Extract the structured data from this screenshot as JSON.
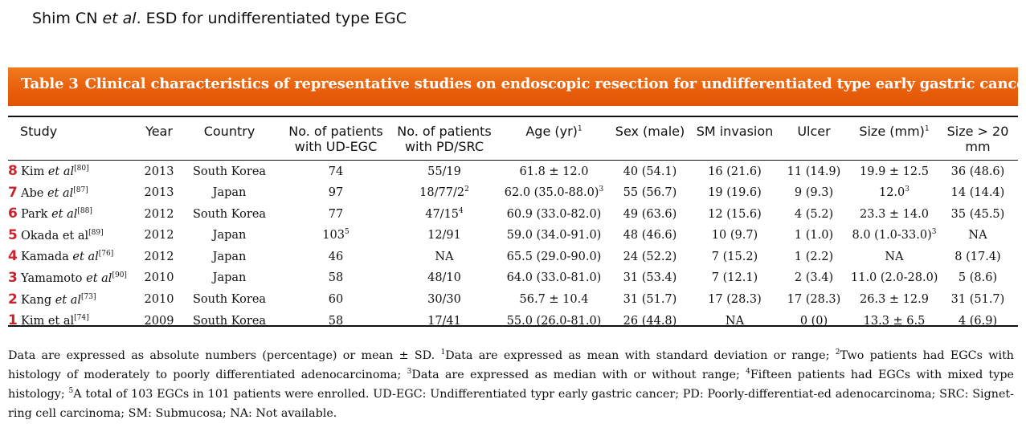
{
  "running_head": {
    "prefix": "Shim CN ",
    "etal": "et al",
    "suffix": ". ESD for undifferentiated type EGC"
  },
  "table": {
    "label": "Table 3",
    "title": "Clinical characteristics of representative studies on endoscopic resection for undifferentiated type early gastric cancer",
    "headers": {
      "study": "Study",
      "year": "Year",
      "country": "Country",
      "ud_line1": "No. of patients",
      "ud_line2": "with UD-EGC",
      "pd_line1": "No. of patients",
      "pd_line2": "with PD/SRC",
      "age": "Age (yr)",
      "age_sup": "1",
      "sex": "Sex (male)",
      "sm": "SM invasion",
      "ulcer": "Ulcer",
      "size": "Size (mm)",
      "size_sup": "1",
      "size20": "Size > 20 mm"
    },
    "rows": [
      {
        "num": "8",
        "author": "Kim ",
        "etal": "et al",
        "ref": "[80]",
        "year": "2013",
        "country": "South Korea",
        "ud": "74",
        "pd": "55/19",
        "age": "61.8 ± 12.0",
        "sex": "40 (54.1)",
        "sm": "16 (21.6)",
        "ulcer": "11 (14.9)",
        "size": "19.9 ± 12.5",
        "size20": "36 (48.6)"
      },
      {
        "num": "7",
        "author": "Abe ",
        "etal": "et al",
        "ref": "[87]",
        "year": "2013",
        "country": "Japan",
        "ud": "97",
        "pd": "18/77/2",
        "pd_sup": "2",
        "age": "62.0 (35.0-88.0)",
        "age_sup": "3",
        "sex": "55 (56.7)",
        "sm": "19 (19.6)",
        "ulcer": "9 (9.3)",
        "size": "12.0",
        "size_sup": "3",
        "size20": "14 (14.4)"
      },
      {
        "num": "6",
        "author": "Park ",
        "etal": "et al",
        "ref": "[88]",
        "year": "2012",
        "country": "South Korea",
        "ud": "77",
        "pd": "47/15",
        "pd_sup": "4",
        "age": "60.9 (33.0-82.0)",
        "sex": "49 (63.6)",
        "sm": "12 (15.6)",
        "ulcer": "4 (5.2)",
        "size": "23.3 ± 14.0",
        "size20": "35 (45.5)"
      },
      {
        "num": "5",
        "author": "Okada et al",
        "etal": "",
        "ref": "[89]",
        "year": "2012",
        "country": "Japan",
        "ud": "103",
        "ud_sup": "5",
        "pd": "12/91",
        "age": "59.0 (34.0-91.0)",
        "sex": "48 (46.6)",
        "sm": "10 (9.7)",
        "ulcer": "1 (1.0)",
        "size": "8.0 (1.0-33.0)",
        "size_sup": "3",
        "size20": "NA"
      },
      {
        "num": "4",
        "author": "Kamada ",
        "etal": "et al",
        "ref": "[76]",
        "year": "2012",
        "country": "Japan",
        "ud": "46",
        "pd": "NA",
        "age": "65.5 (29.0-90.0)",
        "sex": "24 (52.2)",
        "sm": "7 (15.2)",
        "ulcer": "1 (2.2)",
        "size": "NA",
        "size20": "8 (17.4)"
      },
      {
        "num": "3",
        "author": "Yamamoto ",
        "etal": "et al",
        "ref": "[90]",
        "year": "2010",
        "country": "Japan",
        "ud": "58",
        "pd": "48/10",
        "age": "64.0 (33.0-81.0)",
        "sex": "31 (53.4)",
        "sm": "7 (12.1)",
        "ulcer": "2 (3.4)",
        "size": "11.0 (2.0-28.0)",
        "size20": "5 (8.6)"
      },
      {
        "num": "2",
        "author": "Kang ",
        "etal": "et al",
        "ref": "[73]",
        "year": "2010",
        "country": "South Korea",
        "ud": "60",
        "pd": "30/30",
        "age": "56.7 ± 10.4",
        "sex": "31 (51.7)",
        "sm": "17 (28.3)",
        "ulcer": "17 (28.3)",
        "size": "26.3 ± 12.9",
        "size20": "31 (51.7)"
      },
      {
        "num": "1",
        "author": "Kim et al",
        "etal": "",
        "ref": "[74]",
        "year": "2009",
        "country": "South Korea",
        "ud": "58",
        "pd": "17/41",
        "age": "55.0 (26.0-81.0)",
        "sex": "26 (44.8)",
        "sm": "NA",
        "ulcer": "0 (0)",
        "size": "13.3 ± 6.5",
        "size20": "4 (6.9)"
      }
    ]
  },
  "footnote": {
    "s0": "Data are expressed as absolute numbers (percentage) or mean ± SD. ",
    "sup1": "1",
    "s1": "Data are expressed as mean with standard deviation or range; ",
    "sup2": "2",
    "s2": "Two patients had EGCs with histology of moderately to poorly differentiated adenocarcinoma; ",
    "sup3": "3",
    "s3": "Data are expressed as median with or without range; ",
    "sup4": "4",
    "s4": "Fifteen patients had EGCs with mixed type histology; ",
    "sup5": "5",
    "s5": "A total of 103 EGCs in 101 patients were enrolled. UD-EGC: Undifferentiated typr early gastric cancer; PD: Poorly-differentiat-ed adenocarcinoma; SRC: Signet-ring cell carcinoma; SM: Submucosa; NA: Not available."
  }
}
